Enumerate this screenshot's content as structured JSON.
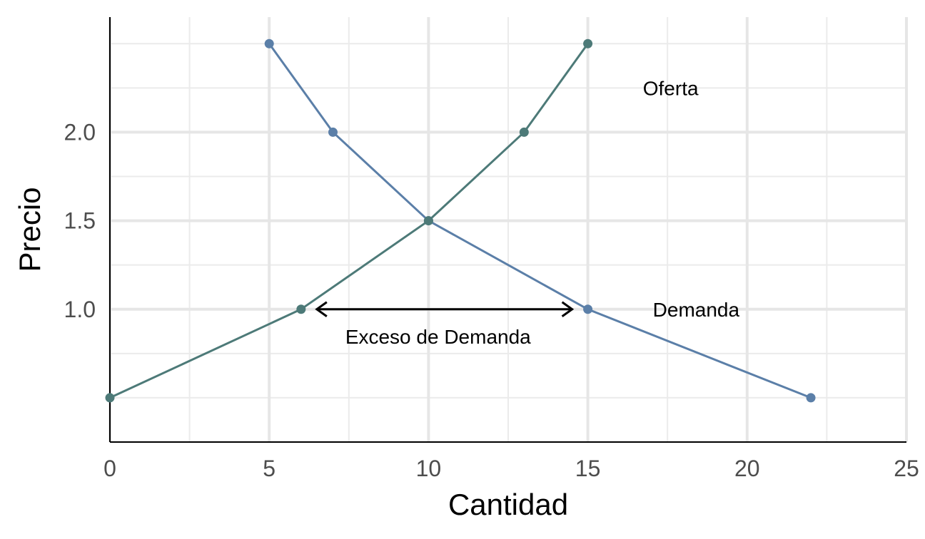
{
  "chart_data": {
    "type": "line",
    "title": "",
    "xlabel": "Cantidad",
    "ylabel": "Precio",
    "xlim": [
      0,
      25
    ],
    "ylim": [
      0.25,
      2.65
    ],
    "x_ticks": [
      0,
      5,
      10,
      15,
      20,
      25
    ],
    "x_tick_labels": [
      "0",
      "5",
      "10",
      "15",
      "20",
      "25"
    ],
    "y_ticks": [
      1.0,
      1.5,
      2.0
    ],
    "y_tick_labels": [
      "1.0",
      "1.5",
      "2.0"
    ],
    "grid": true,
    "series": [
      {
        "name": "Demanda",
        "color": "#5b7fa8",
        "points": [
          [
            5,
            2.5
          ],
          [
            7,
            2.0
          ],
          [
            10,
            1.5
          ],
          [
            15,
            1.0
          ],
          [
            22,
            0.5
          ]
        ]
      },
      {
        "name": "Oferta",
        "color": "#4d7a78",
        "points": [
          [
            0,
            0.5
          ],
          [
            6,
            1.0
          ],
          [
            10,
            1.5
          ],
          [
            13,
            2.0
          ],
          [
            15,
            2.5
          ]
        ]
      }
    ],
    "annotations": [
      {
        "id": "oferta",
        "text": "Oferta",
        "x": 17.6,
        "y": 2.25
      },
      {
        "id": "demanda",
        "text": "Demanda",
        "x": 18.4,
        "y": 1.0
      },
      {
        "id": "exceso",
        "text": "Exceso de Demanda",
        "x": 10.3,
        "y": 0.845
      }
    ],
    "double_arrow": {
      "x_from": 6,
      "x_to": 15,
      "y": 1.0
    }
  }
}
